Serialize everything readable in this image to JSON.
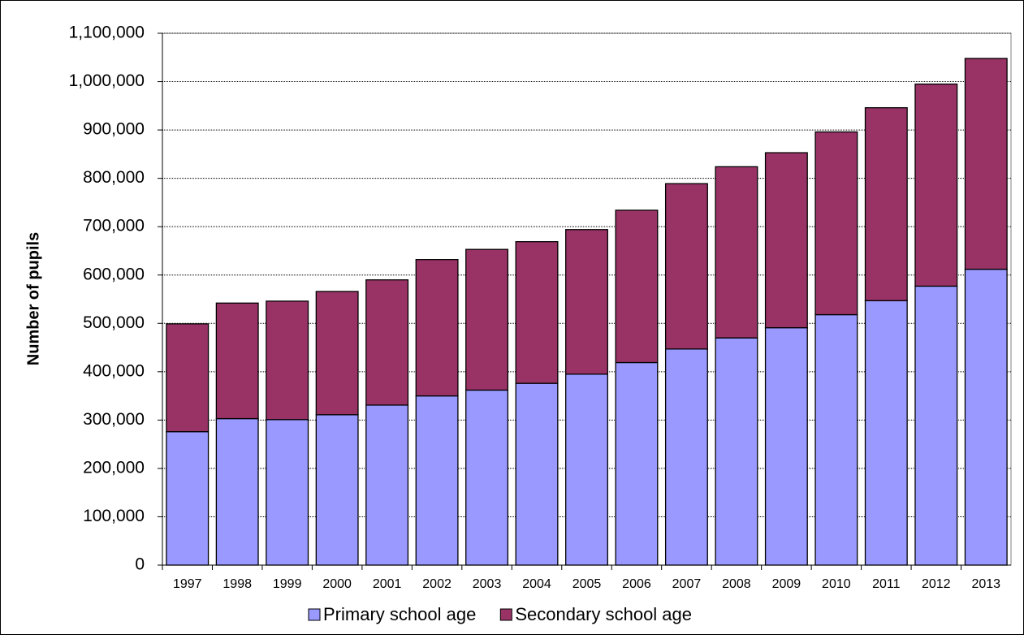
{
  "chart_data": {
    "type": "stacked_bar",
    "y_label": "Number of pupils",
    "categories": [
      "1997",
      "1998",
      "1999",
      "2000",
      "2001",
      "2002",
      "2003",
      "2004",
      "2005",
      "2006",
      "2007",
      "2008",
      "2009",
      "2010",
      "2011",
      "2012",
      "2013"
    ],
    "series": [
      {
        "name": "Primary school age",
        "color": "#9999ff",
        "values": [
          276000,
          303000,
          301000,
          311000,
          331000,
          350000,
          362000,
          376000,
          395000,
          419000,
          447000,
          470000,
          491000,
          518000,
          547000,
          577000,
          612000
        ]
      },
      {
        "name": "Secondary school age",
        "color": "#993366",
        "values": [
          223000,
          239000,
          245000,
          255000,
          259000,
          282000,
          291000,
          293000,
          299000,
          315000,
          342000,
          354000,
          362000,
          378000,
          399000,
          418000,
          436000
        ]
      }
    ],
    "ylim": [
      0,
      1100000
    ],
    "yticks": [
      0,
      {
        "value": 100000,
        "label": "100,000"
      },
      {
        "value": 200000,
        "label": "200,000"
      },
      {
        "value": 300000,
        "label": "300,000"
      },
      {
        "value": 400000,
        "label": "400,000"
      },
      {
        "value": 500000,
        "label": "500,000"
      },
      {
        "value": 600000,
        "label": "600,000"
      },
      {
        "value": 700000,
        "label": "700,000"
      },
      {
        "value": 800000,
        "label": "800,000"
      },
      {
        "value": 900000,
        "label": "900,000"
      },
      {
        "value": 1000000,
        "label": "1,000,000"
      },
      {
        "value": 1100000,
        "label": "1,100,000"
      }
    ],
    "grid": true
  }
}
